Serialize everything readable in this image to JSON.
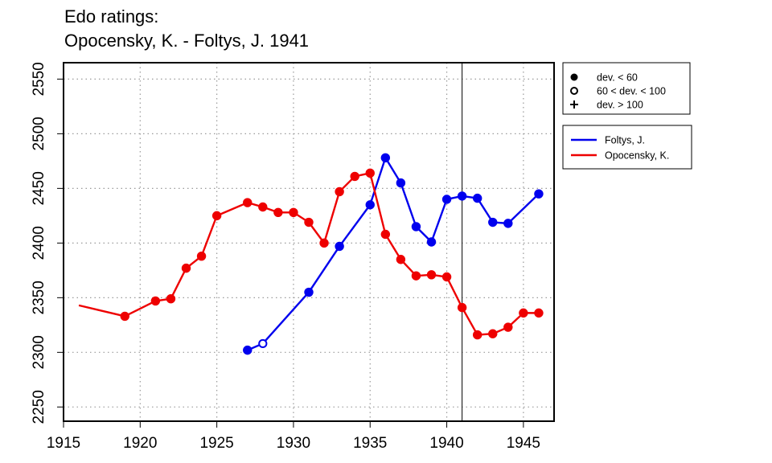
{
  "chart_data": {
    "type": "line",
    "title": [
      "Edo ratings:",
      "Opocensky, K. - Foltys, J. 1941"
    ],
    "xlabel": "",
    "ylabel": "",
    "xlim": [
      1915,
      1947
    ],
    "ylim": [
      2237,
      2565
    ],
    "x_ticks": [
      1915,
      1920,
      1925,
      1930,
      1935,
      1940,
      1945
    ],
    "y_ticks": [
      2250,
      2300,
      2350,
      2400,
      2450,
      2500,
      2550
    ],
    "grid": true,
    "vline": 1941,
    "series": [
      {
        "name": "Foltys, J.",
        "color": "#0000ee",
        "points": [
          {
            "x": 1927,
            "y": 2302,
            "marker": "filled"
          },
          {
            "x": 1928,
            "y": 2308,
            "marker": "open"
          },
          {
            "x": 1931,
            "y": 2355,
            "marker": "filled"
          },
          {
            "x": 1933,
            "y": 2397,
            "marker": "filled"
          },
          {
            "x": 1935,
            "y": 2435,
            "marker": "filled"
          },
          {
            "x": 1936,
            "y": 2478,
            "marker": "filled"
          },
          {
            "x": 1937,
            "y": 2455,
            "marker": "filled"
          },
          {
            "x": 1938,
            "y": 2415,
            "marker": "filled"
          },
          {
            "x": 1939,
            "y": 2401,
            "marker": "filled"
          },
          {
            "x": 1940,
            "y": 2440,
            "marker": "filled"
          },
          {
            "x": 1941,
            "y": 2443,
            "marker": "filled"
          },
          {
            "x": 1942,
            "y": 2441,
            "marker": "filled"
          },
          {
            "x": 1943,
            "y": 2419,
            "marker": "filled"
          },
          {
            "x": 1944,
            "y": 2418,
            "marker": "filled"
          },
          {
            "x": 1946,
            "y": 2445,
            "marker": "filled"
          }
        ]
      },
      {
        "name": "Opocensky, K.",
        "color": "#ee0000",
        "points": [
          {
            "x": 1916,
            "y": 2343,
            "marker": "none"
          },
          {
            "x": 1919,
            "y": 2333,
            "marker": "filled"
          },
          {
            "x": 1921,
            "y": 2347,
            "marker": "filled"
          },
          {
            "x": 1922,
            "y": 2349,
            "marker": "filled"
          },
          {
            "x": 1923,
            "y": 2377,
            "marker": "filled"
          },
          {
            "x": 1924,
            "y": 2388,
            "marker": "filled"
          },
          {
            "x": 1925,
            "y": 2425,
            "marker": "filled"
          },
          {
            "x": 1927,
            "y": 2437,
            "marker": "filled"
          },
          {
            "x": 1928,
            "y": 2433,
            "marker": "filled"
          },
          {
            "x": 1929,
            "y": 2428,
            "marker": "filled"
          },
          {
            "x": 1930,
            "y": 2428,
            "marker": "filled"
          },
          {
            "x": 1931,
            "y": 2419,
            "marker": "filled"
          },
          {
            "x": 1932,
            "y": 2400,
            "marker": "filled"
          },
          {
            "x": 1933,
            "y": 2447,
            "marker": "filled"
          },
          {
            "x": 1934,
            "y": 2461,
            "marker": "filled"
          },
          {
            "x": 1935,
            "y": 2464,
            "marker": "filled"
          },
          {
            "x": 1936,
            "y": 2408,
            "marker": "filled"
          },
          {
            "x": 1937,
            "y": 2385,
            "marker": "filled"
          },
          {
            "x": 1938,
            "y": 2370,
            "marker": "filled"
          },
          {
            "x": 1939,
            "y": 2371,
            "marker": "filled"
          },
          {
            "x": 1940,
            "y": 2369,
            "marker": "filled"
          },
          {
            "x": 1941,
            "y": 2341,
            "marker": "filled"
          },
          {
            "x": 1942,
            "y": 2316,
            "marker": "filled"
          },
          {
            "x": 1943,
            "y": 2317,
            "marker": "filled"
          },
          {
            "x": 1944,
            "y": 2323,
            "marker": "filled"
          },
          {
            "x": 1945,
            "y": 2336,
            "marker": "filled"
          },
          {
            "x": 1946,
            "y": 2336,
            "marker": "filled"
          }
        ]
      }
    ],
    "marker_legend": [
      {
        "marker": "filled",
        "label": "dev. < 60"
      },
      {
        "marker": "open",
        "label": "60 < dev. < 100"
      },
      {
        "marker": "plus",
        "label": "dev. > 100"
      }
    ],
    "legend_position": "right"
  }
}
